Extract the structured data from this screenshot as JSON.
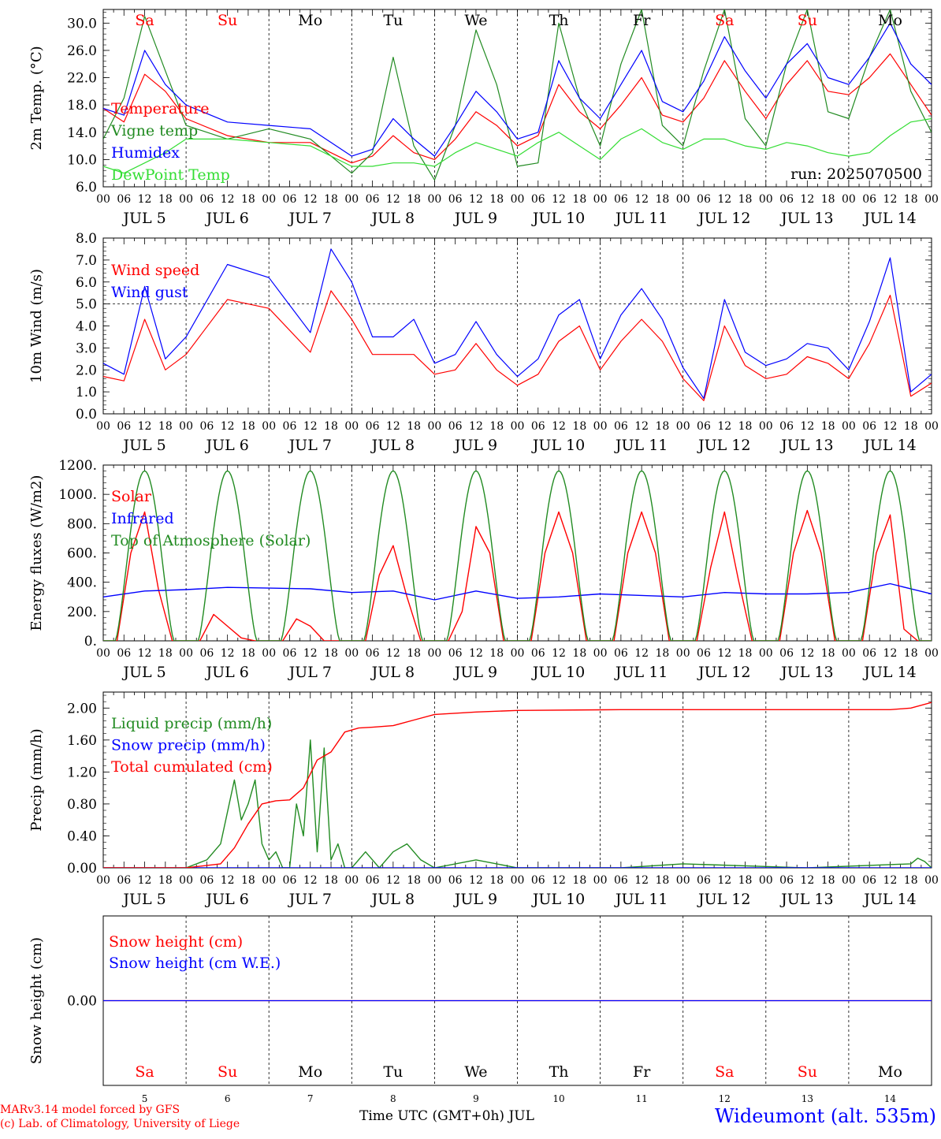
{
  "run_label": "run: 2025070500",
  "credits": [
    "MARv3.14 model forced by GFS",
    "(c) Lab. of Climatology, University of Liege"
  ],
  "station": "Wideumont (alt. 535m)",
  "xaxis_title": "Time UTC (GMT+0h) JUL",
  "days": [
    "Sa",
    "Su",
    "Mo",
    "Tu",
    "We",
    "Th",
    "Fr",
    "Sa",
    "Su",
    "Mo"
  ],
  "weekend_days": [
    "Sa",
    "Su"
  ],
  "day_numbers": [
    "5",
    "6",
    "7",
    "8",
    "9",
    "10",
    "11",
    "12",
    "13",
    "14"
  ],
  "date_labels": [
    "JUL  5",
    "JUL  6",
    "JUL  7",
    "JUL  8",
    "JUL  9",
    "JUL 10",
    "JUL 11",
    "JUL 12",
    "JUL 13",
    "JUL 14"
  ],
  "hour_ticks": [
    "00",
    "06",
    "12",
    "18"
  ],
  "colors": {
    "red": "#ff0000",
    "green": "#228b22",
    "blue": "#0000ff",
    "lime": "#33dd33",
    "grid": "#000000"
  },
  "chart_data": [
    {
      "type": "line",
      "ylabel": "2m Temp. (°C)",
      "ylim": [
        6,
        32
      ],
      "yticks": [
        "6.0",
        "10.0",
        "14.0",
        "18.0",
        "22.0",
        "26.0",
        "30.0"
      ],
      "x_unit": "hours since 00 UTC JUL 5",
      "series": [
        {
          "name": "Temperature",
          "color": "red",
          "x": [
            0,
            6,
            12,
            18,
            24,
            36,
            48,
            60,
            72,
            78,
            84,
            90,
            96,
            102,
            108,
            114,
            120,
            126,
            132,
            138,
            144,
            150,
            156,
            162,
            168,
            174,
            180,
            186,
            192,
            198,
            204,
            210,
            216,
            222,
            228,
            234,
            240
          ],
          "values": [
            17.5,
            15.5,
            22.5,
            20,
            16,
            13.5,
            12.5,
            12.5,
            9.5,
            10.5,
            13.5,
            11,
            10,
            13,
            17,
            15,
            12,
            13.5,
            21,
            17,
            14.5,
            18,
            22,
            16.5,
            15.5,
            19,
            24.5,
            20,
            16,
            21,
            24.5,
            20,
            19.5,
            22,
            25.5,
            21,
            16.5
          ]
        },
        {
          "name": "Vigne temp",
          "color": "green",
          "x": [
            0,
            6,
            12,
            18,
            24,
            36,
            48,
            60,
            72,
            78,
            84,
            90,
            96,
            102,
            108,
            114,
            120,
            126,
            132,
            138,
            144,
            150,
            156,
            162,
            168,
            174,
            180,
            186,
            192,
            198,
            204,
            210,
            216,
            222,
            228,
            234,
            240
          ],
          "values": [
            13,
            19,
            31,
            23,
            15,
            13,
            14.5,
            13,
            8,
            11,
            25,
            12,
            7,
            15,
            29,
            21,
            9,
            9.5,
            30,
            19,
            12,
            24,
            32,
            15,
            12,
            23,
            32,
            16,
            12,
            24,
            32,
            17,
            16,
            25,
            32,
            20,
            14
          ]
        },
        {
          "name": "Humidex",
          "color": "blue",
          "x": [
            0,
            6,
            12,
            18,
            24,
            36,
            48,
            60,
            72,
            78,
            84,
            90,
            96,
            102,
            108,
            114,
            120,
            126,
            132,
            138,
            144,
            150,
            156,
            162,
            168,
            174,
            180,
            186,
            192,
            198,
            204,
            210,
            216,
            222,
            228,
            234,
            240
          ],
          "values": [
            17.5,
            16.5,
            26,
            21,
            18,
            15.5,
            15,
            14.5,
            10.5,
            11.5,
            16,
            13,
            10.5,
            15,
            20,
            17,
            13,
            14,
            24.5,
            19,
            16,
            21,
            26,
            18.5,
            17,
            21.5,
            28,
            23,
            19,
            24,
            27,
            22,
            21,
            25,
            30,
            24,
            21
          ]
        },
        {
          "name": "DewPoint Temp",
          "color": "lime",
          "x": [
            0,
            6,
            12,
            18,
            24,
            36,
            48,
            60,
            72,
            78,
            84,
            90,
            96,
            102,
            108,
            114,
            120,
            126,
            132,
            138,
            144,
            150,
            156,
            162,
            168,
            174,
            180,
            186,
            192,
            198,
            204,
            210,
            216,
            222,
            228,
            234,
            240
          ],
          "values": [
            9,
            8,
            9.5,
            11,
            13,
            13,
            12.5,
            12,
            9,
            9,
            9.5,
            9.5,
            9,
            11,
            12.5,
            11.5,
            10.5,
            12.5,
            14,
            12,
            10,
            13,
            14.5,
            12.5,
            11.5,
            13,
            13,
            12,
            11.5,
            12.5,
            12,
            11,
            10.5,
            11,
            13.5,
            15.5,
            16
          ]
        }
      ]
    },
    {
      "type": "line",
      "ylabel": "10m Wind (m/s)",
      "ylim": [
        0,
        8
      ],
      "yticks": [
        "0.0",
        "1.0",
        "2.0",
        "3.0",
        "4.0",
        "5.0",
        "6.0",
        "7.0",
        "8.0"
      ],
      "reference_line": 5,
      "series": [
        {
          "name": "Wind speed",
          "color": "red",
          "x": [
            0,
            6,
            12,
            18,
            24,
            36,
            48,
            60,
            66,
            72,
            78,
            84,
            90,
            96,
            102,
            108,
            114,
            120,
            126,
            132,
            138,
            144,
            150,
            156,
            162,
            168,
            174,
            180,
            186,
            192,
            198,
            204,
            210,
            216,
            222,
            228,
            234,
            240
          ],
          "values": [
            1.7,
            1.5,
            4.3,
            2,
            2.7,
            5.2,
            4.8,
            2.8,
            5.6,
            4.3,
            2.7,
            2.7,
            2.7,
            1.8,
            2,
            3.2,
            2,
            1.3,
            1.8,
            3.3,
            4,
            2,
            3.3,
            4.3,
            3.3,
            1.6,
            0.6,
            4,
            2.2,
            1.6,
            1.8,
            2.6,
            2.3,
            1.6,
            3.2,
            5.4,
            0.8,
            1.4
          ]
        },
        {
          "name": "Wind gust",
          "color": "blue",
          "x": [
            0,
            6,
            12,
            18,
            24,
            36,
            48,
            60,
            66,
            72,
            78,
            84,
            90,
            96,
            102,
            108,
            114,
            120,
            126,
            132,
            138,
            144,
            150,
            156,
            162,
            168,
            174,
            180,
            186,
            192,
            198,
            204,
            210,
            216,
            222,
            228,
            234,
            240
          ],
          "values": [
            2.3,
            1.8,
            5.8,
            2.5,
            3.5,
            6.8,
            6.2,
            3.7,
            7.5,
            6,
            3.5,
            3.5,
            4.3,
            2.3,
            2.7,
            4.2,
            2.7,
            1.7,
            2.5,
            4.5,
            5.2,
            2.5,
            4.5,
            5.7,
            4.3,
            2.1,
            0.7,
            5.2,
            2.8,
            2.2,
            2.5,
            3.2,
            3,
            2,
            4.2,
            7.1,
            1,
            1.8
          ]
        }
      ]
    },
    {
      "type": "line",
      "ylabel": "Energy fluxes (W/m2)",
      "ylim": [
        0,
        1200
      ],
      "yticks": [
        "0.",
        "200.",
        "400.",
        "600.",
        "800.",
        "1000.",
        "1200."
      ],
      "series": [
        {
          "name": "Solar",
          "color": "red",
          "x": [
            0,
            4,
            8,
            12,
            16,
            20,
            24,
            28,
            32,
            36,
            40,
            44,
            48,
            52,
            56,
            60,
            64,
            68,
            72,
            76,
            80,
            84,
            88,
            92,
            96,
            100,
            104,
            108,
            112,
            116,
            120,
            124,
            128,
            132,
            136,
            140,
            144,
            148,
            152,
            156,
            160,
            164,
            168,
            172,
            176,
            180,
            184,
            188,
            192,
            196,
            200,
            204,
            208,
            212,
            216,
            220,
            224,
            228,
            232,
            236,
            240
          ],
          "values": [
            0,
            0,
            600,
            880,
            350,
            0,
            0,
            0,
            180,
            100,
            20,
            0,
            0,
            0,
            150,
            100,
            0,
            0,
            0,
            0,
            450,
            650,
            300,
            0,
            0,
            0,
            200,
            780,
            600,
            0,
            0,
            0,
            600,
            880,
            600,
            0,
            0,
            0,
            600,
            880,
            600,
            0,
            0,
            0,
            500,
            880,
            420,
            0,
            0,
            0,
            600,
            890,
            600,
            0,
            0,
            0,
            600,
            860,
            80,
            0,
            0
          ]
        },
        {
          "name": "Infrared",
          "color": "blue",
          "x": [
            0,
            12,
            24,
            36,
            48,
            60,
            72,
            84,
            96,
            108,
            120,
            132,
            144,
            156,
            168,
            180,
            192,
            204,
            216,
            228,
            240
          ],
          "values": [
            300,
            340,
            350,
            365,
            360,
            355,
            330,
            340,
            280,
            340,
            290,
            300,
            320,
            310,
            300,
            330,
            320,
            320,
            330,
            390,
            320
          ]
        },
        {
          "name": "Top of Atmosphere (Solar)",
          "color": "green",
          "x": [],
          "values": [],
          "peak": 1160
        }
      ]
    },
    {
      "type": "line",
      "ylabel": "Precip (mm/h)",
      "ylim": [
        0,
        2.2
      ],
      "yticks": [
        "0.00",
        "0.40",
        "0.80",
        "1.20",
        "1.60",
        "2.00"
      ],
      "series": [
        {
          "name": "Liquid precip (mm/h)",
          "color": "green",
          "x": [
            0,
            24,
            30,
            34,
            38,
            40,
            42,
            44,
            46,
            48,
            50,
            52,
            54,
            56,
            58,
            60,
            62,
            64,
            66,
            68,
            70,
            72,
            76,
            80,
            84,
            88,
            92,
            96,
            108,
            120,
            150,
            168,
            204,
            234,
            236,
            238,
            240
          ],
          "values": [
            0,
            0,
            0.1,
            0.3,
            1.1,
            0.6,
            0.8,
            1.1,
            0.3,
            0.1,
            0.2,
            0,
            0,
            0.8,
            0.4,
            1.6,
            0.2,
            1.5,
            0.1,
            0.3,
            0,
            0,
            0.2,
            0,
            0.2,
            0.3,
            0.1,
            0,
            0.1,
            0,
            0,
            0.05,
            0,
            0.05,
            0.12,
            0.08,
            0
          ]
        },
        {
          "name": "Snow precip (mm/h)",
          "color": "blue",
          "x": [
            0,
            240
          ],
          "values": [
            0,
            0
          ]
        },
        {
          "name": "Total cumulated (cm)",
          "color": "red",
          "x": [
            0,
            24,
            34,
            38,
            42,
            46,
            50,
            54,
            58,
            62,
            66,
            70,
            74,
            78,
            84,
            90,
            96,
            108,
            120,
            150,
            180,
            210,
            228,
            234,
            240
          ],
          "values": [
            0,
            0,
            0.05,
            0.25,
            0.55,
            0.8,
            0.84,
            0.85,
            1.0,
            1.35,
            1.45,
            1.7,
            1.75,
            1.76,
            1.78,
            1.85,
            1.92,
            1.95,
            1.97,
            1.98,
            1.98,
            1.98,
            1.98,
            2.0,
            2.07
          ]
        }
      ]
    },
    {
      "type": "line",
      "ylabel": "Snow height (cm)",
      "ylim": [
        -1,
        1
      ],
      "yticks": [
        "0.00"
      ],
      "series": [
        {
          "name": "Snow height (cm)",
          "color": "red",
          "x": [
            0,
            240
          ],
          "values": [
            0,
            0
          ]
        },
        {
          "name": "Snow height (cm W.E.)",
          "color": "blue",
          "x": [
            0,
            240
          ],
          "values": [
            0,
            0
          ]
        }
      ]
    }
  ]
}
